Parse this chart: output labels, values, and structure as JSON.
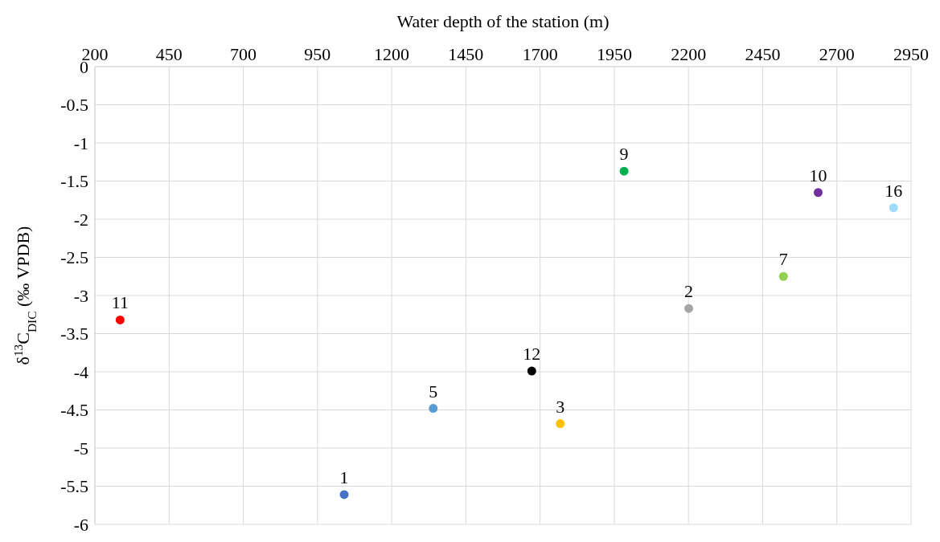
{
  "chart_data": {
    "type": "scatter",
    "xlabel": "Water depth of the station (m)",
    "ylabel": "δ$^{13}$C$_{DIC}$ (‰ VPDB)",
    "x": [
      285,
      1040,
      1340,
      1672,
      1768,
      1983,
      2201,
      2520,
      2637,
      2891
    ],
    "series": [
      {
        "values": [
          -3.32,
          -5.61,
          -4.48,
          -3.99,
          -4.68,
          -1.37,
          -3.17,
          -2.75,
          -1.65,
          -1.85
        ],
        "colors": [
          "#ff0000",
          "#4472c4",
          "#5b9bd5",
          "#000000",
          "#ffc000",
          "#00b050",
          "#a5a5a5",
          "#92d050",
          "#7030a0",
          "#9dddf9"
        ]
      }
    ],
    "annotations": [
      {
        "text": "11",
        "x": 285,
        "y": -3.32
      },
      {
        "text": "1",
        "x": 1040,
        "y": -5.61
      },
      {
        "text": "5",
        "x": 1340,
        "y": -4.48
      },
      {
        "text": "12",
        "x": 1672,
        "y": -3.99
      },
      {
        "text": "3",
        "x": 1768,
        "y": -4.68
      },
      {
        "text": "9",
        "x": 1983,
        "y": -1.37
      },
      {
        "text": "2",
        "x": 2201,
        "y": -3.17
      },
      {
        "text": "7",
        "x": 2520,
        "y": -2.75
      },
      {
        "text": "10",
        "x": 2637,
        "y": -1.65
      },
      {
        "text": "16",
        "x": 2891,
        "y": -1.85
      }
    ],
    "xlim": [
      200,
      2950
    ],
    "xticks": [
      200,
      450,
      700,
      950,
      1200,
      1450,
      1700,
      1950,
      2200,
      2450,
      2700,
      2950
    ],
    "ylim": [
      -6,
      0
    ],
    "yticks": [
      -6,
      -5.5,
      -5,
      -4.5,
      -4,
      -3.5,
      -3,
      -2.5,
      -2,
      -1.5,
      -1,
      -0.5,
      0
    ],
    "grid": true,
    "marker": "circle"
  }
}
